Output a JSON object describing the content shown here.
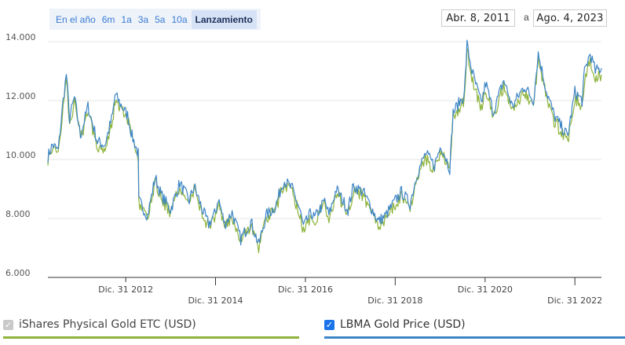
{
  "range_buttons": [
    "En el año",
    "6m",
    "1a",
    "3a",
    "5a",
    "10a",
    "Lanzamiento"
  ],
  "date_range": {
    "from": "Abr. 8, 2011",
    "separator": "a",
    "to": "Ago. 4, 2023"
  },
  "legend": {
    "ishares_label": "iShares Physical Gold ETC (USD)",
    "lbma_label": "LBMA Gold Price (USD)",
    "ishares_checked": false,
    "lbma_checked": true
  },
  "colors": {
    "ishares": "#8db33a",
    "lbma": "#3d85c6",
    "active_button_bg": "#d6e3f7"
  },
  "chart_data": {
    "type": "line",
    "x_domain": [
      "2011-04-08",
      "2023-08-04"
    ],
    "ylim": [
      6000,
      14000
    ],
    "y_ticks": [
      6000,
      8000,
      10000,
      12000,
      14000
    ],
    "y_tick_labels": [
      "6.000",
      "8.000",
      "10.000",
      "12.000",
      "14.000"
    ],
    "x_ticks": [
      "2012-12-31",
      "2014-12-31",
      "2016-12-31",
      "2018-12-31",
      "2020-12-31",
      "2022-12-31"
    ],
    "x_tick_labels": [
      "Dic. 31 2012",
      "Dic. 31 2014",
      "Dic. 31 2016",
      "Dic. 31 2018",
      "Dic. 31 2020",
      "Dic. 31 2022"
    ],
    "grid": true,
    "series": [
      {
        "name": "LBMA Gold Price (USD)",
        "points": [
          [
            "2011-04-08",
            10100
          ],
          [
            "2011-05-15",
            10500
          ],
          [
            "2011-07-01",
            10300
          ],
          [
            "2011-08-10",
            12000
          ],
          [
            "2011-09-05",
            12900
          ],
          [
            "2011-10-01",
            11400
          ],
          [
            "2011-11-10",
            12100
          ],
          [
            "2011-12-29",
            10800
          ],
          [
            "2012-02-28",
            11800
          ],
          [
            "2012-05-15",
            10600
          ],
          [
            "2012-07-15",
            10500
          ],
          [
            "2012-09-15",
            11500
          ],
          [
            "2012-10-05",
            12200
          ],
          [
            "2012-11-15",
            11900
          ],
          [
            "2013-01-15",
            11500
          ],
          [
            "2013-02-20",
            10800
          ],
          [
            "2013-04-12",
            10200
          ],
          [
            "2013-04-16",
            8600
          ],
          [
            "2013-06-27",
            8100
          ],
          [
            "2013-08-28",
            9400
          ],
          [
            "2013-10-15",
            8800
          ],
          [
            "2013-12-31",
            8300
          ],
          [
            "2014-03-15",
            9200
          ],
          [
            "2014-06-01",
            8600
          ],
          [
            "2014-07-10",
            9100
          ],
          [
            "2014-09-15",
            8300
          ],
          [
            "2014-11-05",
            7800
          ],
          [
            "2014-12-31",
            8200
          ],
          [
            "2015-01-22",
            8700
          ],
          [
            "2015-03-15",
            7800
          ],
          [
            "2015-05-15",
            8200
          ],
          [
            "2015-07-24",
            7300
          ],
          [
            "2015-10-15",
            7900
          ],
          [
            "2015-12-17",
            7100
          ],
          [
            "2016-02-15",
            8100
          ],
          [
            "2016-05-01",
            8400
          ],
          [
            "2016-07-06",
            9300
          ],
          [
            "2016-09-15",
            9000
          ],
          [
            "2016-11-15",
            8300
          ],
          [
            "2016-12-15",
            7700
          ],
          [
            "2017-02-15",
            8200
          ],
          [
            "2017-03-15",
            8000
          ],
          [
            "2017-06-06",
            8600
          ],
          [
            "2017-07-10",
            8100
          ],
          [
            "2017-09-08",
            9000
          ],
          [
            "2017-12-12",
            8300
          ],
          [
            "2018-01-25",
            9100
          ],
          [
            "2018-04-15",
            8900
          ],
          [
            "2018-08-16",
            7900
          ],
          [
            "2018-10-15",
            8100
          ],
          [
            "2018-12-31",
            8600
          ],
          [
            "2019-02-20",
            8900
          ],
          [
            "2019-05-01",
            8500
          ],
          [
            "2019-06-25",
            9500
          ],
          [
            "2019-09-04",
            10200
          ],
          [
            "2019-11-15",
            9800
          ],
          [
            "2020-01-08",
            10500
          ],
          [
            "2020-03-19",
            9700
          ],
          [
            "2020-04-15",
            11600
          ],
          [
            "2020-07-15",
            12200
          ],
          [
            "2020-08-06",
            13900
          ],
          [
            "2020-09-15",
            13000
          ],
          [
            "2020-11-30",
            11900
          ],
          [
            "2021-01-05",
            12600
          ],
          [
            "2021-03-08",
            11600
          ],
          [
            "2021-06-01",
            12700
          ],
          [
            "2021-08-09",
            11800
          ],
          [
            "2021-11-15",
            12500
          ],
          [
            "2022-01-28",
            12000
          ],
          [
            "2022-03-08",
            13600
          ],
          [
            "2022-05-15",
            12300
          ],
          [
            "2022-07-15",
            11500
          ],
          [
            "2022-09-28",
            11000
          ],
          [
            "2022-11-03",
            10800
          ],
          [
            "2022-12-31",
            12300
          ],
          [
            "2023-02-28",
            12000
          ],
          [
            "2023-03-20",
            13000
          ],
          [
            "2023-05-04",
            13600
          ],
          [
            "2023-06-15",
            13000
          ],
          [
            "2023-08-04",
            13100
          ]
        ]
      },
      {
        "name": "iShares Physical Gold ETC (USD)",
        "points": [
          [
            "2011-04-08",
            10000
          ],
          [
            "2011-05-15",
            10380
          ],
          [
            "2011-07-01",
            10180
          ],
          [
            "2011-08-10",
            11860
          ],
          [
            "2011-09-05",
            12740
          ],
          [
            "2011-10-01",
            11260
          ],
          [
            "2011-11-10",
            11940
          ],
          [
            "2011-12-29",
            10660
          ],
          [
            "2012-02-28",
            11640
          ],
          [
            "2012-05-15",
            10460
          ],
          [
            "2012-07-15",
            10360
          ],
          [
            "2012-09-15",
            11350
          ],
          [
            "2012-10-05",
            12040
          ],
          [
            "2012-11-15",
            11740
          ],
          [
            "2013-01-15",
            11340
          ],
          [
            "2013-02-20",
            10650
          ],
          [
            "2013-04-12",
            10060
          ],
          [
            "2013-04-16",
            8470
          ],
          [
            "2013-06-27",
            7980
          ],
          [
            "2013-08-28",
            9270
          ],
          [
            "2013-10-15",
            8680
          ],
          [
            "2013-12-31",
            8180
          ],
          [
            "2014-03-15",
            9070
          ],
          [
            "2014-06-01",
            8480
          ],
          [
            "2014-07-10",
            8970
          ],
          [
            "2014-09-15",
            8180
          ],
          [
            "2014-11-05",
            7690
          ],
          [
            "2014-12-31",
            8080
          ],
          [
            "2015-01-22",
            8570
          ],
          [
            "2015-03-15",
            7690
          ],
          [
            "2015-05-15",
            8080
          ],
          [
            "2015-07-24",
            7190
          ],
          [
            "2015-10-15",
            7780
          ],
          [
            "2015-12-17",
            7000
          ],
          [
            "2016-02-15",
            7980
          ],
          [
            "2016-05-01",
            8270
          ],
          [
            "2016-07-06",
            9160
          ],
          [
            "2016-09-15",
            8870
          ],
          [
            "2016-11-15",
            8170
          ],
          [
            "2016-12-15",
            7590
          ],
          [
            "2017-02-15",
            8080
          ],
          [
            "2017-03-15",
            7880
          ],
          [
            "2017-06-06",
            8470
          ],
          [
            "2017-07-10",
            7980
          ],
          [
            "2017-09-08",
            8860
          ],
          [
            "2017-12-12",
            8170
          ],
          [
            "2018-01-25",
            8960
          ],
          [
            "2018-04-15",
            8760
          ],
          [
            "2018-08-16",
            7780
          ],
          [
            "2018-10-15",
            7980
          ],
          [
            "2018-12-31",
            8470
          ],
          [
            "2019-02-20",
            8760
          ],
          [
            "2019-05-01",
            8370
          ],
          [
            "2019-06-25",
            9350
          ],
          [
            "2019-09-04",
            10040
          ],
          [
            "2019-11-15",
            9650
          ],
          [
            "2020-01-08",
            10330
          ],
          [
            "2020-03-19",
            9550
          ],
          [
            "2020-04-15",
            11420
          ],
          [
            "2020-07-15",
            12010
          ],
          [
            "2020-08-06",
            13690
          ],
          [
            "2020-09-15",
            12800
          ],
          [
            "2020-11-30",
            11710
          ],
          [
            "2021-01-05",
            12400
          ],
          [
            "2021-03-08",
            11420
          ],
          [
            "2021-06-01",
            12500
          ],
          [
            "2021-08-09",
            11610
          ],
          [
            "2021-11-15",
            12300
          ],
          [
            "2022-01-28",
            11810
          ],
          [
            "2022-03-08",
            13380
          ],
          [
            "2022-05-15",
            12100
          ],
          [
            "2022-07-15",
            11320
          ],
          [
            "2022-09-28",
            10830
          ],
          [
            "2022-11-03",
            10630
          ],
          [
            "2022-12-31",
            12100
          ],
          [
            "2023-02-28",
            11810
          ],
          [
            "2023-03-20",
            12790
          ],
          [
            "2023-05-04",
            13380
          ],
          [
            "2023-06-15",
            12790
          ],
          [
            "2023-08-04",
            12880
          ]
        ]
      }
    ]
  }
}
